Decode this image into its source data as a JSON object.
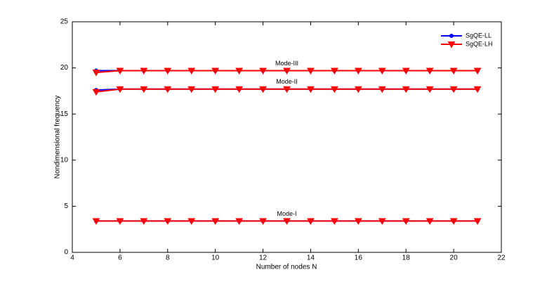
{
  "chart_data": {
    "type": "line",
    "xlabel": "Number of nodes N",
    "ylabel": "Nondimensional frequency",
    "x": [
      5,
      6,
      7,
      8,
      9,
      10,
      11,
      12,
      13,
      14,
      15,
      16,
      17,
      18,
      19,
      20,
      21
    ],
    "xlim": [
      4,
      22
    ],
    "xticks": [
      4,
      6,
      8,
      10,
      12,
      14,
      16,
      18,
      20,
      22
    ],
    "ylim": [
      0,
      25
    ],
    "yticks": [
      0,
      5,
      10,
      15,
      20,
      25
    ],
    "grid": false,
    "legend": "upper right",
    "annotations": [
      "Mode-I",
      "Mode-II",
      "Mode-III"
    ],
    "series": [
      {
        "name": "SgQE-LL",
        "color": "#0000ff",
        "marker": "circle",
        "lines": [
          {
            "values": [
              3.4,
              3.4,
              3.4,
              3.4,
              3.4,
              3.4,
              3.4,
              3.4,
              3.4,
              3.4,
              3.4,
              3.4,
              3.4,
              3.4,
              3.4,
              3.4,
              3.4
            ]
          },
          {
            "values": [
              17.6,
              17.7,
              17.7,
              17.7,
              17.7,
              17.7,
              17.7,
              17.7,
              17.7,
              17.7,
              17.7,
              17.7,
              17.7,
              17.7,
              17.7,
              17.7,
              17.7
            ]
          },
          {
            "values": [
              19.7,
              19.7,
              19.7,
              19.7,
              19.7,
              19.7,
              19.7,
              19.7,
              19.7,
              19.7,
              19.7,
              19.7,
              19.7,
              19.7,
              19.7,
              19.7,
              19.7
            ]
          }
        ]
      },
      {
        "name": "SgQE-LH",
        "color": "#ff0000",
        "marker": "triangle-down",
        "lines": [
          {
            "values": [
              3.4,
              3.4,
              3.4,
              3.4,
              3.4,
              3.4,
              3.4,
              3.4,
              3.4,
              3.4,
              3.4,
              3.4,
              3.4,
              3.4,
              3.4,
              3.4,
              3.4
            ]
          },
          {
            "values": [
              17.4,
              17.7,
              17.7,
              17.7,
              17.7,
              17.7,
              17.7,
              17.7,
              17.7,
              17.7,
              17.7,
              17.7,
              17.7,
              17.7,
              17.7,
              17.7,
              17.7
            ]
          },
          {
            "values": [
              19.5,
              19.7,
              19.7,
              19.7,
              19.7,
              19.7,
              19.7,
              19.7,
              19.7,
              19.7,
              19.7,
              19.7,
              19.7,
              19.7,
              19.7,
              19.7,
              19.7
            ]
          }
        ]
      }
    ]
  }
}
